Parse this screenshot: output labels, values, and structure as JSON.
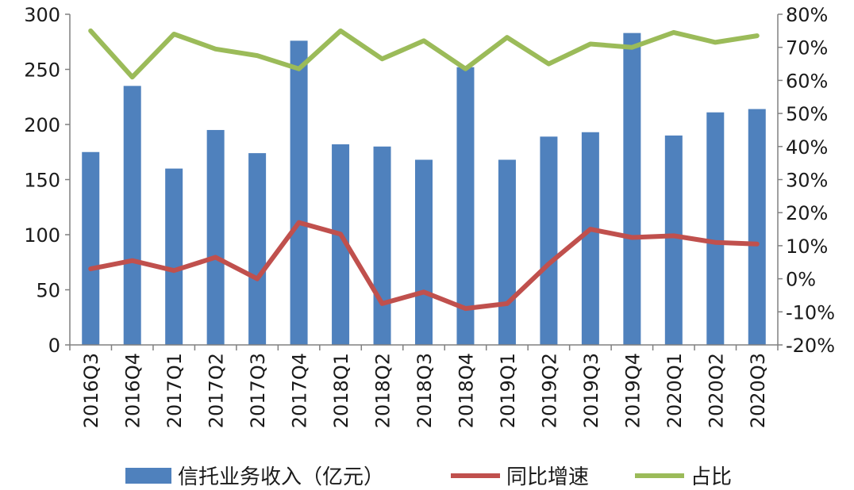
{
  "chart_data": {
    "type": "bar",
    "categories": [
      "2016Q3",
      "2016Q4",
      "2017Q1",
      "2017Q2",
      "2017Q3",
      "2017Q4",
      "2018Q1",
      "2018Q2",
      "2018Q3",
      "2018Q4",
      "2019Q1",
      "2019Q2",
      "2019Q3",
      "2019Q4",
      "2020Q1",
      "2020Q2",
      "2020Q3"
    ],
    "series": [
      {
        "name": "信托业务收入（亿元）",
        "type": "bar",
        "axis": "left",
        "color": "#4f81bd",
        "values": [
          175,
          235,
          160,
          195,
          174,
          276,
          182,
          180,
          168,
          252,
          168,
          189,
          193,
          283,
          190,
          211,
          214
        ]
      },
      {
        "name": "同比增速",
        "type": "line",
        "axis": "right",
        "color": "#c0504d",
        "values": [
          3,
          5.5,
          2.5,
          6.5,
          0,
          17,
          13.5,
          -7.5,
          -4,
          -9,
          -7.5,
          4.5,
          15,
          12.5,
          13,
          11,
          10.5
        ]
      },
      {
        "name": "占比",
        "type": "line",
        "axis": "right",
        "color": "#9bbb59",
        "values": [
          75,
          61,
          74,
          69.5,
          67.5,
          63.5,
          75,
          66.5,
          72,
          63.5,
          73,
          65,
          71,
          70,
          74.5,
          71.5,
          73.5
        ]
      }
    ],
    "left_axis": {
      "ylim": [
        0,
        300
      ],
      "ticks": [
        0,
        50,
        100,
        150,
        200,
        250,
        300
      ],
      "tick_labels": [
        "0",
        "50",
        "100",
        "150",
        "200",
        "250",
        "300"
      ]
    },
    "right_axis": {
      "ylim": [
        -20,
        80
      ],
      "ticks": [
        -20,
        -10,
        0,
        10,
        20,
        30,
        40,
        50,
        60,
        70,
        80
      ],
      "tick_labels": [
        "-20%",
        "-10%",
        "0%",
        "10%",
        "20%",
        "30%",
        "40%",
        "50%",
        "60%",
        "70%",
        "80%"
      ]
    },
    "title": "",
    "xlabel": "",
    "ylabel": "",
    "grid": false,
    "legend_position": "bottom"
  }
}
